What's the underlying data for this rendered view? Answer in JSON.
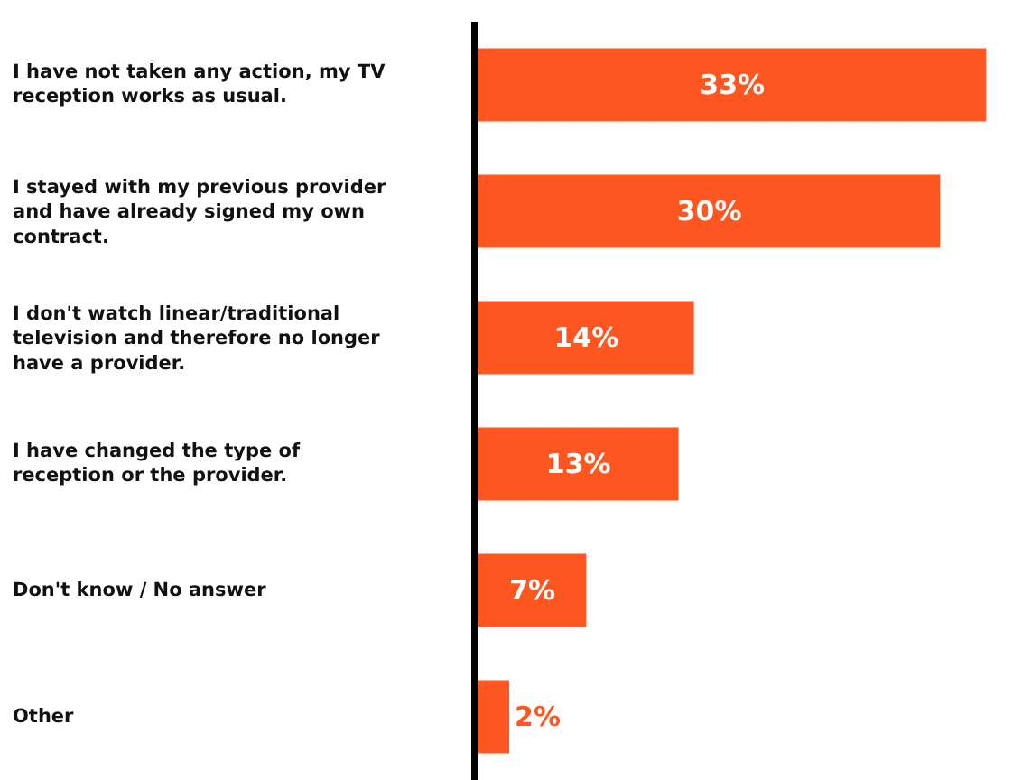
{
  "chart_data": {
    "type": "bar",
    "orientation": "horizontal",
    "categories": [
      "I have not taken any action, my TV reception works as usual.",
      "I stayed with my previous provider and have already signed my own contract.",
      "I don't watch linear/traditional television and therefore no longer have a provider.",
      "I have changed the type of reception or the provider.",
      "Don't know / No answer",
      "Other"
    ],
    "values": [
      33,
      30,
      14,
      13,
      7,
      2
    ],
    "value_labels": [
      "33%",
      "30%",
      "14%",
      "13%",
      "7%",
      "2%"
    ],
    "color": "#fd5621"
  }
}
